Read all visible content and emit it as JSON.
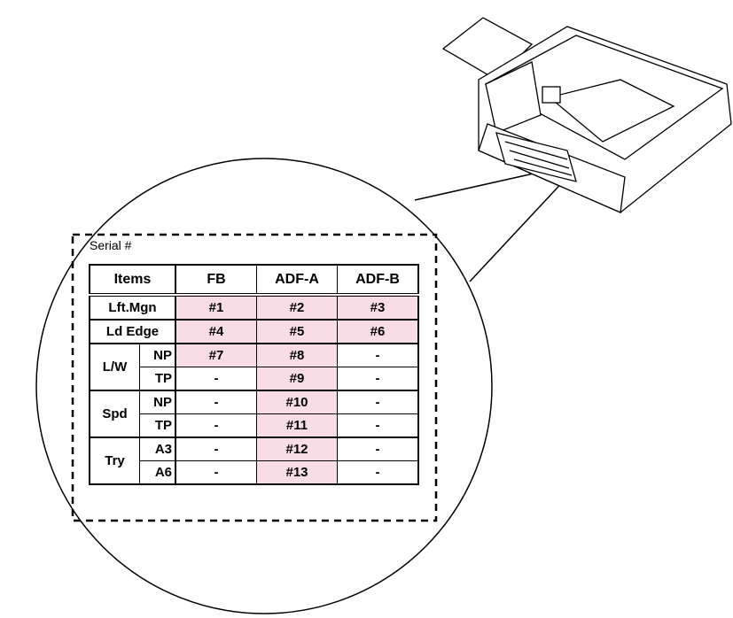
{
  "label": "Serial #",
  "table": {
    "header": [
      "Items",
      "FB",
      "ADF-A",
      "ADF-B"
    ],
    "rows": [
      {
        "item": "Lft.Mgn",
        "cells": [
          "#1",
          "#2",
          "#3"
        ]
      },
      {
        "item": "Ld Edge",
        "cells": [
          "#4",
          "#5",
          "#6"
        ]
      },
      {
        "item": "L/W",
        "sub": [
          {
            "name": "NP",
            "cells": [
              "#7",
              "#8",
              "-"
            ]
          },
          {
            "name": "TP",
            "cells": [
              "-",
              "#9",
              "-"
            ]
          }
        ]
      },
      {
        "item": "Spd",
        "sub": [
          {
            "name": "NP",
            "cells": [
              "-",
              "#10",
              "-"
            ]
          },
          {
            "name": "TP",
            "cells": [
              "-",
              "#11",
              "-"
            ]
          }
        ]
      },
      {
        "item": "Try",
        "sub": [
          {
            "name": "A3",
            "cells": [
              "-",
              "#12",
              "-"
            ]
          },
          {
            "name": "A6",
            "cells": [
              "-",
              "#13",
              "-"
            ]
          }
        ]
      }
    ]
  }
}
